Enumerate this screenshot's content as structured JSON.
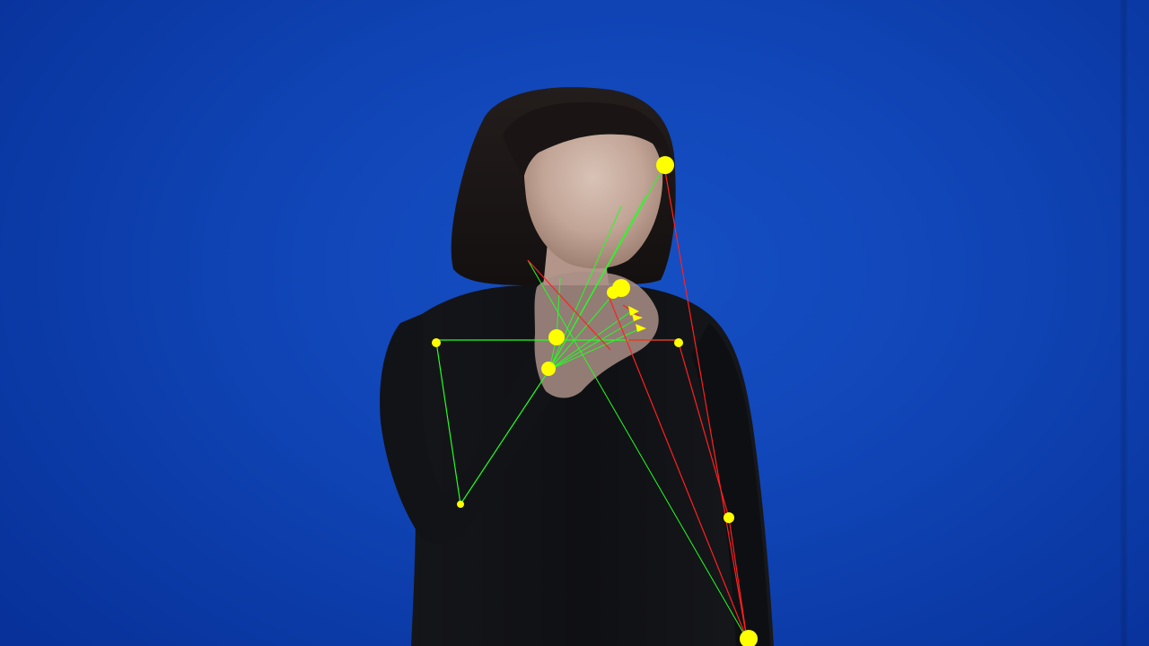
{
  "scene": {
    "subject": "person",
    "backdrop_color": "#0e3fb0",
    "clothing_color": "#101114",
    "hair_color": "#1c1716",
    "skin_color": "#c9ada0"
  },
  "pose_overlay": {
    "left_arm_color": "#22ff22",
    "right_arm_color": "#ff2020",
    "hand_color": "#22ff22",
    "keypoint_color": "#ffff00"
  }
}
